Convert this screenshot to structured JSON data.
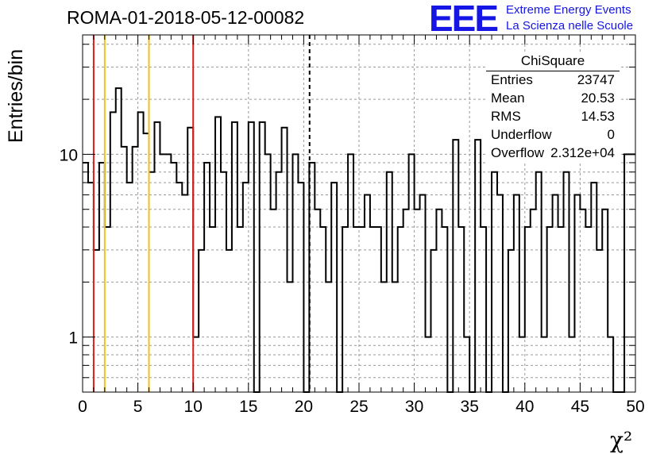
{
  "title": "ROMA-01-2018-05-12-00082",
  "logo": {
    "text": "EEE",
    "line1": "Extreme Energy Events",
    "line2": "La Scienza nelle Scuole",
    "color": "#1515e6"
  },
  "stats": {
    "name": "ChiSquare",
    "rows": [
      {
        "key": "Entries",
        "value": "23747"
      },
      {
        "key": "Mean",
        "value": "20.53"
      },
      {
        "key": "RMS",
        "value": "14.53"
      },
      {
        "key": "Underflow",
        "value": "0"
      },
      {
        "key": "Overflow",
        "value": "2.312e+04"
      }
    ]
  },
  "chart_data": {
    "type": "histogram",
    "title": "ROMA-01-2018-05-12-00082",
    "xlabel": "χ²",
    "ylabel": "Entries/bin",
    "xlim": [
      0,
      50
    ],
    "ylim": [
      0.5,
      45
    ],
    "yscale": "log",
    "grid": true,
    "bin_width": 0.5,
    "x_ticks": [
      0,
      5,
      10,
      15,
      20,
      25,
      30,
      35,
      40,
      45,
      50
    ],
    "y_ticks": [
      1,
      10
    ],
    "counts": [
      9,
      7,
      3,
      9,
      4,
      17,
      23,
      11,
      7,
      11,
      17,
      13,
      8,
      15,
      10,
      10,
      9,
      7,
      6,
      14,
      1,
      3,
      9,
      4,
      16,
      8,
      3,
      15,
      4,
      7,
      15,
      0,
      15,
      10,
      5,
      8,
      14,
      2,
      10,
      7,
      0,
      9,
      5,
      4,
      2,
      7,
      0,
      4,
      10,
      4,
      4,
      6,
      4,
      4,
      2,
      8,
      2,
      4,
      5,
      10,
      5,
      6,
      1,
      3,
      5,
      4,
      0,
      12,
      4,
      1,
      0,
      12,
      4,
      0,
      8,
      6,
      0,
      3,
      6,
      1,
      4,
      5,
      8,
      1,
      4,
      6,
      4,
      8,
      1,
      6,
      5,
      4,
      7,
      3,
      5,
      1,
      0,
      0,
      10,
      10
    ],
    "vlines": [
      {
        "x": 1,
        "color": "#e61a1a",
        "style": "solid"
      },
      {
        "x": 2,
        "color": "#f0c020",
        "style": "solid"
      },
      {
        "x": 6,
        "color": "#f0c020",
        "style": "solid"
      },
      {
        "x": 10,
        "color": "#e61a1a",
        "style": "solid"
      },
      {
        "x": 20.53,
        "color": "#000000",
        "style": "dashed"
      }
    ]
  }
}
